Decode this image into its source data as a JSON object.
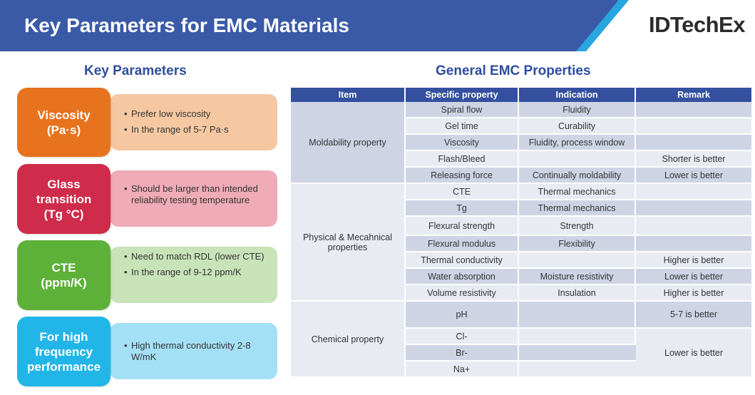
{
  "header": {
    "title": "Key Parameters for EMC Materials",
    "logo": "IDTechEx",
    "colors": {
      "band": "#3a5aa8",
      "accent": "#29a6e0"
    }
  },
  "left": {
    "title": "Key Parameters",
    "params": [
      {
        "label_lines": [
          "Viscosity",
          "(Pa·s)"
        ],
        "color": "#e8731e",
        "bg": "#f5c8a2",
        "bullets": [
          "Prefer low viscosity",
          "In the range of 5-7 Pa·s"
        ]
      },
      {
        "label_lines": [
          "Glass",
          "transition",
          "(Tg  °C)"
        ],
        "color": "#cf2b4a",
        "bg": "#efabb7",
        "bullets": [
          "Should be larger than intended reliability testing temperature"
        ]
      },
      {
        "label_lines": [
          "CTE",
          "(ppm/K)"
        ],
        "color": "#5db139",
        "bg": "#c9e3b9",
        "bullets": [
          "Need to match RDL (lower CTE)",
          "In the range of  9-12 ppm/K"
        ]
      },
      {
        "label_lines": [
          "For high",
          "frequency",
          "performance"
        ],
        "color": "#22b6e8",
        "bg": "#a4e0f5",
        "bullets": [
          "High thermal conductivity 2-8 W/mK"
        ]
      }
    ]
  },
  "right": {
    "title": "General EMC Properties",
    "headers": [
      "Item",
      "Specific property",
      "Indication",
      "Remark"
    ],
    "groups": [
      "Moldability  property",
      "Physical & Mecahnical properties",
      "Chemical property"
    ],
    "rows": [
      [
        "Spiral flow",
        "Fluidity",
        ""
      ],
      [
        "Gel time",
        "Curability",
        ""
      ],
      [
        "Viscosity",
        "Fluidity,  process window",
        ""
      ],
      [
        "Flash/Bleed",
        "",
        "Shorter is better"
      ],
      [
        "Releasing force",
        "Continually  moldability",
        "Lower is better"
      ],
      [
        "CTE",
        "Thermal mechanics",
        ""
      ],
      [
        "Tg",
        "Thermal mechanics",
        ""
      ],
      [
        "Flexural strength",
        "Strength",
        ""
      ],
      [
        "Flexural modulus",
        "Flexibility",
        ""
      ],
      [
        "Thermal conductivity",
        "",
        "Higher is better"
      ],
      [
        "Water absorption",
        "Moisture resistivity",
        "Lower is better"
      ],
      [
        "Volume resistivity",
        "Insulation",
        "Higher is better"
      ],
      [
        "pH",
        "",
        "5-7 is better"
      ],
      [
        "Cl-",
        "",
        "Lower is better"
      ],
      [
        "Br-",
        ""
      ],
      [
        "Na+",
        ""
      ]
    ]
  }
}
